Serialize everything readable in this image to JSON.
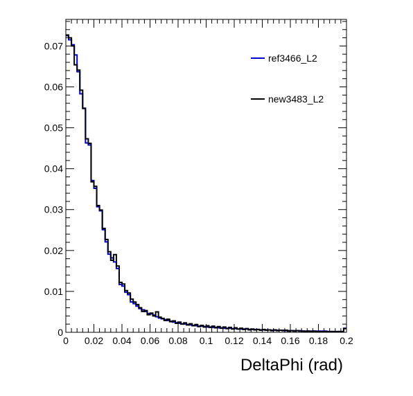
{
  "chart_data": {
    "type": "line",
    "style": "histogram-step",
    "xlabel": "DeltaPhi (rad)",
    "ylabel": "",
    "xlim": [
      0,
      0.2
    ],
    "ylim": [
      0,
      0.0765
    ],
    "x_ticks": [
      "0",
      "0.02",
      "0.04",
      "0.06",
      "0.08",
      "0.1",
      "0.12",
      "0.14",
      "0.16",
      "0.18",
      "0.2"
    ],
    "y_ticks": [
      "0",
      "0.01",
      "0.02",
      "0.03",
      "0.04",
      "0.05",
      "0.06",
      "0.07"
    ],
    "grid": false,
    "legend_placement": "top-right",
    "bin_width": 0.002,
    "series": [
      {
        "name": "ref3466_L2",
        "color": "#0000cc",
        "values": [
          0.0725,
          0.0715,
          0.0703,
          0.0678,
          0.0637,
          0.0583,
          0.0548,
          0.0463,
          0.0458,
          0.0371,
          0.0352,
          0.0307,
          0.0297,
          0.0251,
          0.0221,
          0.0191,
          0.0182,
          0.0172,
          0.0156,
          0.0117,
          0.0113,
          0.0098,
          0.0092,
          0.0074,
          0.007,
          0.0064,
          0.0058,
          0.0055,
          0.0051,
          0.0046,
          0.0045,
          0.0042,
          0.0038,
          0.0035,
          0.0033,
          0.0031,
          0.0029,
          0.0027,
          0.0025,
          0.0024,
          0.0022,
          0.0021,
          0.002,
          0.0019,
          0.0018,
          0.0017,
          0.0016,
          0.0015,
          0.0015,
          0.0014,
          0.0013,
          0.0013,
          0.0012,
          0.0012,
          0.0011,
          0.0011,
          0.001,
          0.001,
          0.001,
          0.0009,
          0.0009,
          0.0008,
          0.0008,
          0.0008,
          0.0008,
          0.0007,
          0.0007,
          0.0007,
          0.0007,
          0.0006,
          0.0006,
          0.0006,
          0.0006,
          0.0005,
          0.0005,
          0.0005,
          0.0005,
          0.0005,
          0.0004,
          0.0004,
          0.0004,
          0.0004,
          0.0004,
          0.0004,
          0.0003,
          0.0003,
          0.0003,
          0.0003,
          0.0003,
          0.0003,
          0.0003,
          0.0003,
          0.0003,
          0.0002,
          0.0002,
          0.0002,
          0.0002,
          0.0002,
          0.0002,
          0.001
        ]
      },
      {
        "name": "new3483_L2",
        "color": "#000000",
        "values": [
          0.0727,
          0.072,
          0.07,
          0.0654,
          0.0641,
          0.0592,
          0.0547,
          0.0473,
          0.0462,
          0.0368,
          0.0357,
          0.031,
          0.0299,
          0.0254,
          0.0227,
          0.0197,
          0.0176,
          0.019,
          0.0162,
          0.0122,
          0.0118,
          0.0102,
          0.0096,
          0.0081,
          0.0074,
          0.0068,
          0.006,
          0.0051,
          0.0053,
          0.0043,
          0.0047,
          0.004,
          0.005,
          0.0037,
          0.0034,
          0.0029,
          0.0032,
          0.0026,
          0.0028,
          0.0022,
          0.0025,
          0.002,
          0.0023,
          0.0018,
          0.0021,
          0.0016,
          0.0019,
          0.0014,
          0.0017,
          0.0013,
          0.0016,
          0.0012,
          0.0015,
          0.0011,
          0.0014,
          0.001,
          0.0013,
          0.0009,
          0.0012,
          0.0008,
          0.0011,
          0.0008,
          0.001,
          0.0007,
          0.0009,
          0.0006,
          0.0008,
          0.0006,
          0.0007,
          0.0005,
          0.0007,
          0.0005,
          0.0006,
          0.0004,
          0.0006,
          0.0004,
          0.0005,
          0.0004,
          0.0005,
          0.0003,
          0.0004,
          0.0003,
          0.0004,
          0.0003,
          0.0003,
          0.0002,
          0.0003,
          0.0002,
          0.0003,
          0.0002,
          0.0002,
          0.0002,
          0.0002,
          0.0002,
          0.0002,
          0.0002,
          0.0001,
          0.0002,
          0.0002,
          0.0009
        ]
      }
    ]
  }
}
